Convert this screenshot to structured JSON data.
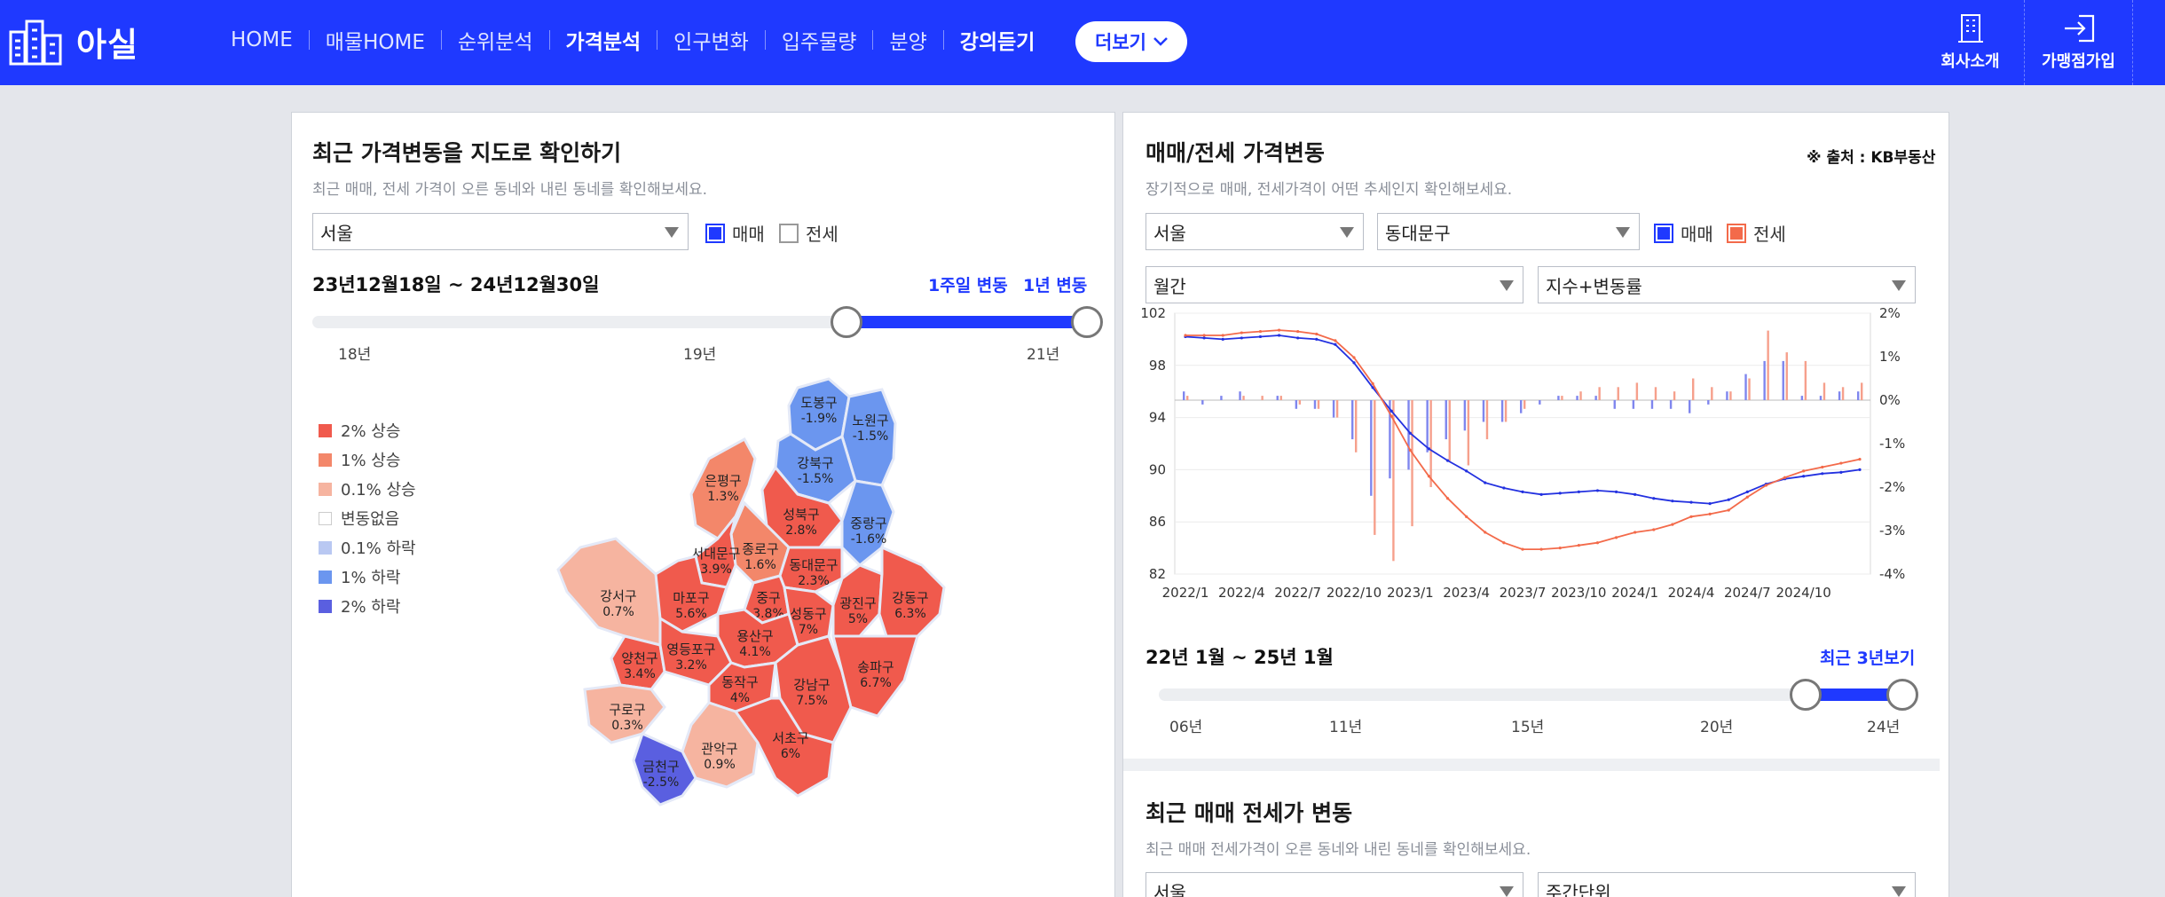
{
  "header": {
    "logo_text": "아실",
    "nav": [
      "HOME",
      "매물HOME",
      "순위분석",
      "가격분석",
      "인구변화",
      "입주물량",
      "분양",
      "강의듣기"
    ],
    "more_label": "더보기",
    "right_links": [
      "회사소개",
      "가맹점가입"
    ]
  },
  "map_panel": {
    "title": "최근 가격변동을 지도로 확인하기",
    "subtitle": "최근 매매, 전세 가격이 오른 동네와 내린 동네를 확인해보세요.",
    "region_select": "서울",
    "check_sale": "매매",
    "check_jeonse": "전세",
    "check_sale_on": true,
    "check_jeonse_on": false,
    "date_range": "23년12월18일 ~ 24년12월30일",
    "link_week": "1주일 변동",
    "link_year": "1년 변동",
    "slider_ticks": [
      "18년",
      "19년",
      "21년"
    ],
    "slider_range_fraction": [
      0.69,
      1.0
    ],
    "legend": [
      {
        "label": "2% 상승",
        "color": "#f05a4d"
      },
      {
        "label": "1% 상승",
        "color": "#f3876a"
      },
      {
        "label": "0.1% 상승",
        "color": "#f6b4a0"
      },
      {
        "label": "변동없음",
        "color": "#ffffff"
      },
      {
        "label": "0.1% 하락",
        "color": "#b9c8f2"
      },
      {
        "label": "1% 하락",
        "color": "#6b96ef"
      },
      {
        "label": "2% 하락",
        "color": "#5a5fe0"
      }
    ],
    "districts": [
      {
        "name": "도봉구",
        "value": "-1.9%"
      },
      {
        "name": "노원구",
        "value": "-1.5%"
      },
      {
        "name": "강북구",
        "value": "-1.5%"
      },
      {
        "name": "은평구",
        "value": "1.3%"
      },
      {
        "name": "성북구",
        "value": "2.8%"
      },
      {
        "name": "중랑구",
        "value": "-1.6%"
      },
      {
        "name": "종로구",
        "value": "1.6%"
      },
      {
        "name": "서대문구",
        "value": "3.9%"
      },
      {
        "name": "동대문구",
        "value": "2.3%"
      },
      {
        "name": "강서구",
        "value": "0.7%"
      },
      {
        "name": "마포구",
        "value": "5.6%"
      },
      {
        "name": "중구",
        "value": "3.8%"
      },
      {
        "name": "성동구",
        "value": "7%"
      },
      {
        "name": "광진구",
        "value": "5%"
      },
      {
        "name": "강동구",
        "value": "6.3%"
      },
      {
        "name": "양천구",
        "value": "3.4%"
      },
      {
        "name": "영등포구",
        "value": "3.2%"
      },
      {
        "name": "용산구",
        "value": "4.1%"
      },
      {
        "name": "동작구",
        "value": "4%"
      },
      {
        "name": "강남구",
        "value": "7.5%"
      },
      {
        "name": "송파구",
        "value": "6.7%"
      },
      {
        "name": "구로구",
        "value": "0.3%"
      },
      {
        "name": "서초구",
        "value": "6%"
      },
      {
        "name": "관악구",
        "value": "0.9%"
      },
      {
        "name": "금천구",
        "value": "-2.5%"
      }
    ]
  },
  "price_panel": {
    "title": "매매/전세 가격변동",
    "source": "※ 출처 : KB부동산",
    "subtitle": "장기적으로 매매, 전세가격이 어떤 추세인지 확인해보세요.",
    "region_select": "서울",
    "district_select": "동대문구",
    "check_sale": "매매",
    "check_jeonse": "전세",
    "period_select": "월간",
    "mode_select": "지수+변동률",
    "date_range": "22년 1월 ~ 25년 1월",
    "recent_link": "최근 3년보기",
    "slider_ticks": [
      "06년",
      "11년",
      "15년",
      "20년",
      "24년"
    ],
    "slider_range_fraction": [
      0.87,
      1.0
    ]
  },
  "recent_panel": {
    "title": "최근 매매 전세가 변동",
    "subtitle": "최근 매매 전세가격이 오른 동네와 내린 동네를 확인해보세요.",
    "region_select": "서울",
    "unit_select": "주간단위"
  },
  "chart_data": {
    "type": "line",
    "x": [
      "2022/1",
      "2022/2",
      "2022/3",
      "2022/4",
      "2022/5",
      "2022/6",
      "2022/7",
      "2022/8",
      "2022/9",
      "2022/10",
      "2022/11",
      "2022/12",
      "2023/1",
      "2023/2",
      "2023/3",
      "2023/4",
      "2023/5",
      "2023/6",
      "2023/7",
      "2023/8",
      "2023/9",
      "2023/10",
      "2023/11",
      "2023/12",
      "2024/1",
      "2024/2",
      "2024/3",
      "2024/4",
      "2024/5",
      "2024/6",
      "2024/7",
      "2024/8",
      "2024/9",
      "2024/10",
      "2024/11",
      "2024/12",
      "2025/1"
    ],
    "xticks": [
      "2022/1",
      "2022/4",
      "2022/7",
      "2022/10",
      "2023/1",
      "2023/4",
      "2023/7",
      "2023/10",
      "2024/1",
      "2024/4",
      "2024/7",
      "2024/10"
    ],
    "y_left_ticks": [
      82,
      86,
      90,
      94,
      98,
      102
    ],
    "y_left_range": [
      82,
      102
    ],
    "y_right_ticks": [
      "2%",
      "1%",
      "0%",
      "-1%",
      "-2%",
      "-3%",
      "-4%"
    ],
    "y_right_range": [
      -4,
      2
    ],
    "series": [
      {
        "name": "매매",
        "axis": "left",
        "kind": "line",
        "color": "#2331e0",
        "values": [
          100.2,
          100.1,
          100.0,
          100.1,
          100.2,
          100.3,
          100.1,
          100.0,
          99.6,
          98.2,
          96.3,
          94.5,
          92.8,
          91.6,
          90.7,
          89.9,
          89.0,
          88.6,
          88.3,
          88.1,
          88.2,
          88.3,
          88.4,
          88.3,
          88.1,
          87.8,
          87.6,
          87.5,
          87.4,
          87.7,
          88.3,
          88.9,
          89.3,
          89.5,
          89.7,
          89.8,
          90.0
        ]
      },
      {
        "name": "전세",
        "axis": "left",
        "kind": "line",
        "color": "#f36a4a",
        "values": [
          100.3,
          100.3,
          100.3,
          100.5,
          100.6,
          100.7,
          100.6,
          100.4,
          99.9,
          98.6,
          96.6,
          94.1,
          91.5,
          89.5,
          87.8,
          86.4,
          85.2,
          84.4,
          83.9,
          83.9,
          84.0,
          84.2,
          84.4,
          84.8,
          85.2,
          85.4,
          85.8,
          86.4,
          86.6,
          86.9,
          87.9,
          88.8,
          89.4,
          89.9,
          90.2,
          90.5,
          90.8
        ]
      },
      {
        "name": "매매",
        "axis": "right",
        "kind": "bar",
        "color": "#7f86ee",
        "values": [
          0.2,
          -0.1,
          0.1,
          0.2,
          0.0,
          0.1,
          -0.2,
          -0.2,
          -0.4,
          -0.9,
          -2.2,
          -1.8,
          -1.6,
          -1.2,
          -0.9,
          -0.7,
          -0.5,
          -0.5,
          -0.3,
          -0.1,
          0.1,
          0.1,
          0.1,
          -0.2,
          -0.2,
          -0.2,
          -0.2,
          -0.3,
          -0.1,
          0.2,
          0.6,
          0.9,
          0.9,
          0.1,
          0.1,
          0.2,
          0.2
        ]
      },
      {
        "name": "전세",
        "axis": "right",
        "kind": "bar",
        "color": "#f6a08c",
        "values": [
          0.1,
          0.0,
          0.0,
          0.1,
          0.1,
          0.1,
          -0.1,
          -0.2,
          -0.4,
          -1.2,
          -3.1,
          -3.7,
          -2.9,
          -2.0,
          -1.4,
          -1.5,
          -0.9,
          -0.5,
          -0.2,
          0.0,
          0.1,
          0.2,
          0.3,
          0.3,
          0.4,
          0.3,
          0.2,
          0.5,
          0.3,
          0.2,
          0.5,
          1.6,
          1.1,
          0.9,
          0.4,
          0.3,
          0.4
        ]
      }
    ]
  }
}
